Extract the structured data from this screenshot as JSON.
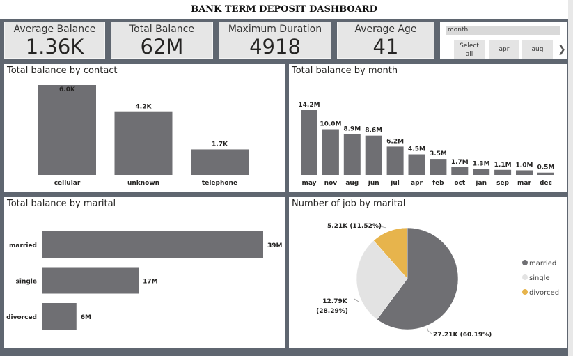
{
  "header": {
    "title": "BANK TERM DEPOSIT DASHBOARD"
  },
  "kpis": [
    {
      "label": "Average Balance",
      "value": "1.36K"
    },
    {
      "label": "Total Balance",
      "value": "62M"
    },
    {
      "label": "Maximum Duration",
      "value": "4918"
    },
    {
      "label": "Average Age",
      "value": "41"
    }
  ],
  "slicer": {
    "field": "month",
    "options": [
      "Select all",
      "apr",
      "aug"
    ],
    "next_icon": "chevron-right-icon"
  },
  "colors": {
    "bar": "#6f6f73",
    "married": "#6f6f73",
    "single": "#e3e3e3",
    "divorced": "#e7b44c",
    "background": "#5f6670"
  },
  "chart_data": [
    {
      "type": "bar",
      "title": "Total balance by contact",
      "categories": [
        "cellular",
        "unknown",
        "telephone"
      ],
      "values": [
        6.0,
        4.2,
        1.7
      ],
      "value_labels": [
        "6.0K",
        "4.2K",
        "1.7K"
      ],
      "ylim": [
        0,
        6.0
      ]
    },
    {
      "type": "bar",
      "title": "Total balance by month",
      "categories": [
        "may",
        "nov",
        "aug",
        "jun",
        "jul",
        "apr",
        "feb",
        "oct",
        "jan",
        "sep",
        "mar",
        "dec"
      ],
      "values": [
        14.2,
        10.0,
        8.9,
        8.6,
        6.2,
        4.5,
        3.5,
        1.7,
        1.3,
        1.1,
        1.0,
        0.5
      ],
      "value_labels": [
        "14.2M",
        "10.0M",
        "8.9M",
        "8.6M",
        "6.2M",
        "4.5M",
        "3.5M",
        "1.7M",
        "1.3M",
        "1.1M",
        "1.0M",
        "0.5M"
      ],
      "ylim": [
        0,
        14.2
      ]
    },
    {
      "type": "bar",
      "orientation": "horizontal",
      "title": "Total balance by marital",
      "categories": [
        "married",
        "single",
        "divorced"
      ],
      "values": [
        39,
        17,
        6
      ],
      "value_labels": [
        "39M",
        "17M",
        "6M"
      ],
      "xlim": [
        0,
        39
      ]
    },
    {
      "type": "pie",
      "title": "Number of job by marital",
      "labels": [
        "married",
        "single",
        "divorced"
      ],
      "values": [
        27.21,
        12.79,
        5.21
      ],
      "percents": [
        60.19,
        28.29,
        11.52
      ],
      "value_labels": [
        "27.21K (60.19%)",
        "12.79K",
        "5.21K (11.52%)"
      ],
      "value_labels_extra": {
        "single": "(28.29%)"
      },
      "legend": "right"
    }
  ]
}
